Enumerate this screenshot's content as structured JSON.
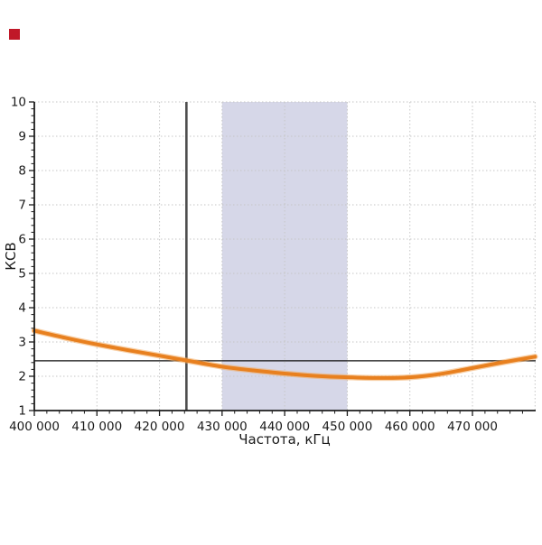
{
  "chart_data": {
    "type": "line",
    "title": "",
    "xlabel": "Частота, кГц",
    "ylabel": "КСВ",
    "xlim": [
      400000,
      480100
    ],
    "ylim": [
      1,
      10
    ],
    "grid": true,
    "legend": "none",
    "x_major_ticks": [
      400000,
      410000,
      420000,
      430000,
      440000,
      450000,
      460000,
      470000
    ],
    "x_tick_labels": [
      "400 000",
      "410 000",
      "420 000",
      "430 000",
      "440 000",
      "450 000",
      "460 000",
      "470 000"
    ],
    "x_minor_step": 2000,
    "y_major_ticks": [
      1,
      2,
      3,
      4,
      5,
      6,
      7,
      8,
      9,
      10
    ],
    "y_tick_labels": [
      "1",
      "2",
      "3",
      "4",
      "5",
      "6",
      "7",
      "8",
      "9",
      "10"
    ],
    "y_minor_step": 0.2,
    "x_grid_values": [
      410000,
      420000,
      430000,
      440000,
      450000,
      460000,
      470000,
      480000
    ],
    "y_grid_values": [
      2,
      3,
      4,
      5,
      6,
      7,
      8,
      9,
      10
    ],
    "highlight_band": {
      "from": 430000,
      "to": 450000,
      "color": "#d6d7e8"
    },
    "marker_vline": {
      "x": 424300,
      "color": "#4d4d4d"
    },
    "marker_hline": {
      "y": 2.45,
      "color": "#111111"
    },
    "series": [
      {
        "name": "КСВ",
        "color": "#e8801f",
        "glow_color": "#f3aa5e",
        "x": [
          400000,
          405000,
          410000,
          415000,
          420000,
          424300,
          430000,
          435000,
          440000,
          445000,
          450000,
          455000,
          460000,
          465000,
          470000,
          475000,
          480000
        ],
        "y": [
          3.33,
          3.12,
          2.93,
          2.76,
          2.6,
          2.46,
          2.28,
          2.17,
          2.08,
          2.01,
          1.97,
          1.95,
          1.97,
          2.07,
          2.24,
          2.41,
          2.57
        ]
      }
    ]
  },
  "decorations": {
    "red_marker_color": "#c01828"
  },
  "style": {
    "grid_color": "#c6c6c6",
    "axis_color": "#1c1c1c"
  }
}
